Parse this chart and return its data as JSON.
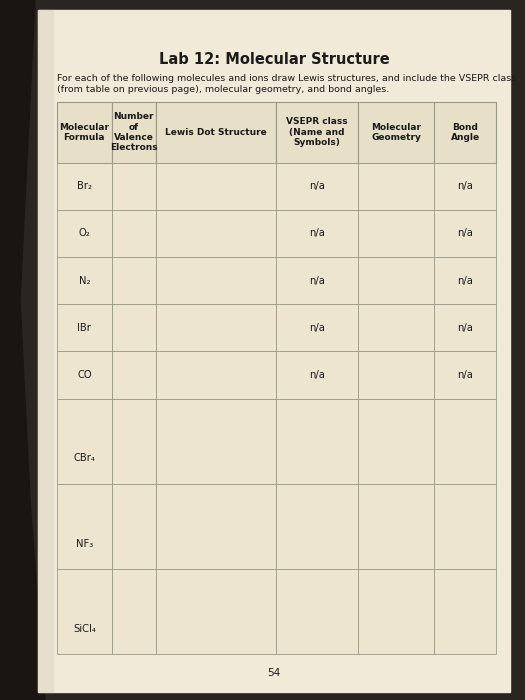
{
  "title": "Lab 12: Molecular Structure",
  "subtitle_line1": "For each of the following molecules and ions draw Lewis structures, and include the VSEPR class",
  "subtitle_line2": "(from table on previous page), molecular geometry, and bond angles.",
  "page_number": "54",
  "col_headers": [
    "Molecular\nFormula",
    "Number\nof\nValence\nElectrons",
    "Lewis Dot Structure",
    "VSEPR class\n(Name and\nSymbols)",
    "Molecular\nGeometry",
    "Bond\nAngle"
  ],
  "rows": [
    {
      "formula": "Br₂",
      "vsepr": "n/a",
      "bond_angle": "n/a",
      "tall": false
    },
    {
      "formula": "O₂",
      "vsepr": "n/a",
      "bond_angle": "n/a",
      "tall": false
    },
    {
      "formula": "N₂",
      "vsepr": "n/a",
      "bond_angle": "n/a",
      "tall": false
    },
    {
      "formula": "IBr",
      "vsepr": "n/a",
      "bond_angle": "n/a",
      "tall": false
    },
    {
      "formula": "CO",
      "vsepr": "n/a",
      "bond_angle": "n/a",
      "tall": false
    },
    {
      "formula": "CBr₄",
      "vsepr": "",
      "bond_angle": "",
      "tall": true
    },
    {
      "formula": "NF₃",
      "vsepr": "",
      "bond_angle": "",
      "tall": true
    },
    {
      "formula": "SiCl₄",
      "vsepr": "",
      "bond_angle": "",
      "tall": true
    }
  ],
  "outer_bg": "#2a2520",
  "paper_bg": "#f2ead8",
  "header_bg": "#e8dfc8",
  "cell_bg": "#ede5cf",
  "border_color": "#999988",
  "text_color": "#1a1a1a",
  "title_fontsize": 10.5,
  "subtitle_fontsize": 6.8,
  "cell_fontsize": 7.2,
  "header_fontsize": 6.5,
  "page_num_fontsize": 7.5
}
